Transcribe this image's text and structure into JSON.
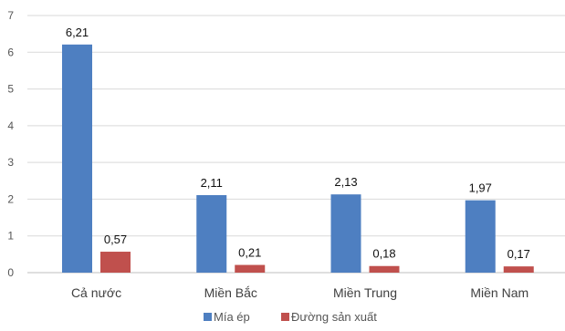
{
  "chart_data": {
    "type": "bar",
    "categories": [
      "Cả nước",
      "Miền Bắc",
      "Miền Trung",
      "Miền Nam"
    ],
    "series": [
      {
        "name": "Mía ép",
        "values": [
          6.21,
          2.11,
          2.13,
          1.97
        ],
        "labels": [
          "6,21",
          "2,11",
          "2,13",
          "1,97"
        ],
        "color": "#4e7fc1"
      },
      {
        "name": "Đường sản xuất",
        "values": [
          0.57,
          0.21,
          0.18,
          0.17
        ],
        "labels": [
          "0,57",
          "0,21",
          "0,18",
          "0,17"
        ],
        "color": "#c0504d"
      }
    ],
    "y_ticks": [
      "0",
      "1",
      "2",
      "3",
      "4",
      "5",
      "6",
      "7"
    ],
    "ylim": [
      0,
      7
    ],
    "grid": true,
    "legend_position": "bottom"
  }
}
